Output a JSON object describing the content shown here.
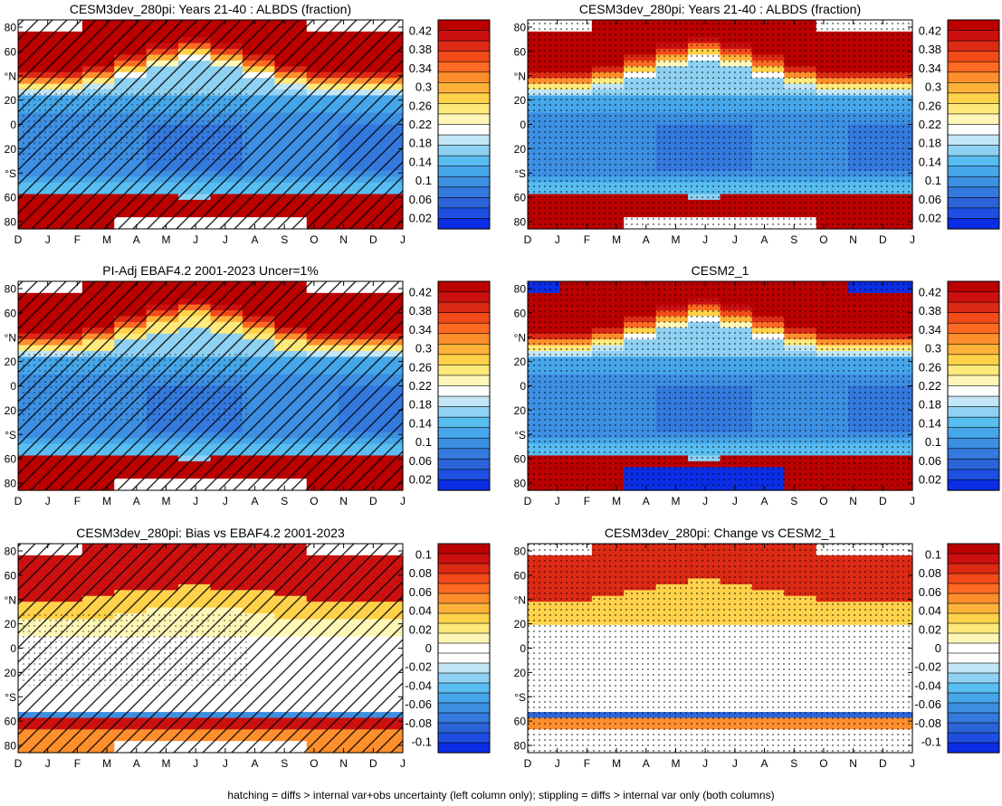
{
  "footer": "hatching = diffs > internal var+obs uncertainty (left column only); stippling = diffs > internal var only (both columns)",
  "chart_data": [
    {
      "type": "heatmap",
      "title": "CESM3dev_280pi: Years 21-40 : ALBDS (fraction)",
      "field": "albedo",
      "x_ticks": [
        "D",
        "J",
        "F",
        "M",
        "A",
        "M",
        "J",
        "J",
        "A",
        "S",
        "O",
        "N",
        "D",
        "J"
      ],
      "y_ticks": [
        "80",
        "60",
        "°N",
        "20",
        "0",
        "20",
        "°S",
        "60",
        "80"
      ],
      "colorbar_ticks": [
        "0.42",
        "0.38",
        "0.34",
        "0.3",
        "0.26",
        "0.22",
        "0.18",
        "0.14",
        "0.1",
        "0.06",
        "0.02"
      ],
      "hatching": true,
      "stippling": "partial"
    },
    {
      "type": "heatmap",
      "title": "CESM3dev_280pi: Years 21-40 : ALBDS (fraction)",
      "field": "albedo",
      "x_ticks": [
        "D",
        "J",
        "F",
        "M",
        "A",
        "M",
        "J",
        "J",
        "A",
        "S",
        "O",
        "N",
        "D",
        "J"
      ],
      "y_ticks": [
        "80",
        "60",
        "°N",
        "20",
        "0",
        "20",
        "°S",
        "60",
        "80"
      ],
      "colorbar_ticks": [
        "0.42",
        "0.38",
        "0.34",
        "0.3",
        "0.26",
        "0.22",
        "0.18",
        "0.14",
        "0.1",
        "0.06",
        "0.02"
      ],
      "hatching": false,
      "stippling": "full"
    },
    {
      "type": "heatmap",
      "title": "PI-Adj EBAF4.2 2001-2023 Uncer=1%",
      "field": "albedo",
      "x_ticks": [
        "D",
        "J",
        "F",
        "M",
        "A",
        "M",
        "J",
        "J",
        "A",
        "S",
        "O",
        "N",
        "D",
        "J"
      ],
      "y_ticks": [
        "80",
        "60",
        "°N",
        "20",
        "0",
        "20",
        "°S",
        "60",
        "80"
      ],
      "colorbar_ticks": [
        "0.42",
        "0.38",
        "0.34",
        "0.3",
        "0.26",
        "0.22",
        "0.18",
        "0.14",
        "0.1",
        "0.06",
        "0.02"
      ],
      "hatching": true,
      "stippling": "partial"
    },
    {
      "type": "heatmap",
      "title": "CESM2_1",
      "field": "albedo",
      "x_ticks": [
        "D",
        "J",
        "F",
        "M",
        "A",
        "M",
        "J",
        "J",
        "A",
        "S",
        "O",
        "N",
        "D",
        "J"
      ],
      "y_ticks": [
        "80",
        "60",
        "°N",
        "20",
        "0",
        "20",
        "°S",
        "60",
        "80"
      ],
      "colorbar_ticks": [
        "0.42",
        "0.38",
        "0.34",
        "0.3",
        "0.26",
        "0.22",
        "0.18",
        "0.14",
        "0.1",
        "0.06",
        "0.02"
      ],
      "hatching": false,
      "stippling": "full"
    },
    {
      "type": "heatmap",
      "title": "CESM3dev_280pi: Bias vs EBAF4.2 2001-2023",
      "field": "diff",
      "x_ticks": [
        "D",
        "J",
        "F",
        "M",
        "A",
        "M",
        "J",
        "J",
        "A",
        "S",
        "O",
        "N",
        "D",
        "J"
      ],
      "y_ticks": [
        "80",
        "60",
        "°N",
        "20",
        "0",
        "20",
        "°S",
        "60",
        "80"
      ],
      "colorbar_ticks": [
        "0.1",
        "0.08",
        "0.06",
        "0.04",
        "0.02",
        "0",
        "-0.02",
        "-0.04",
        "-0.06",
        "-0.08",
        "-0.1"
      ],
      "hatching": true,
      "stippling": "partial"
    },
    {
      "type": "heatmap",
      "title": "CESM3dev_280pi: Change vs CESM2_1",
      "field": "diff",
      "x_ticks": [
        "D",
        "J",
        "F",
        "M",
        "A",
        "M",
        "J",
        "J",
        "A",
        "S",
        "O",
        "N",
        "D",
        "J"
      ],
      "y_ticks": [
        "80",
        "60",
        "°N",
        "20",
        "0",
        "20",
        "°S",
        "60",
        "80"
      ],
      "colorbar_ticks": [
        "0.1",
        "0.08",
        "0.06",
        "0.04",
        "0.02",
        "0",
        "-0.02",
        "-0.04",
        "-0.06",
        "-0.08",
        "-0.1"
      ],
      "hatching": false,
      "stippling": "full"
    }
  ],
  "colors": {
    "albedo_scale": [
      "#0a2ee6",
      "#1e4fe0",
      "#2c64d8",
      "#3479dd",
      "#3d8fe2",
      "#46a6ea",
      "#58bdf0",
      "#8fd1f2",
      "#c2e6f6",
      "#ffffff",
      "#fff7b8",
      "#ffe97a",
      "#ffd24a",
      "#ffb23a",
      "#ff8f2c",
      "#ff6a22",
      "#f34a1a",
      "#dd2a14",
      "#cc1010",
      "#bb0000"
    ],
    "diff_scale": [
      "#0a2ee6",
      "#1e4fe0",
      "#2c64d8",
      "#3479dd",
      "#3d8fe2",
      "#46a6ea",
      "#58bdf0",
      "#8fd1f2",
      "#c2e6f6",
      "#ffffff",
      "#ffffff",
      "#fff7b8",
      "#ffe97a",
      "#ffd24a",
      "#ffb23a",
      "#ff8f2c",
      "#ff6a22",
      "#f34a1a",
      "#dd2a14",
      "#cc1010",
      "#bb0000"
    ]
  }
}
